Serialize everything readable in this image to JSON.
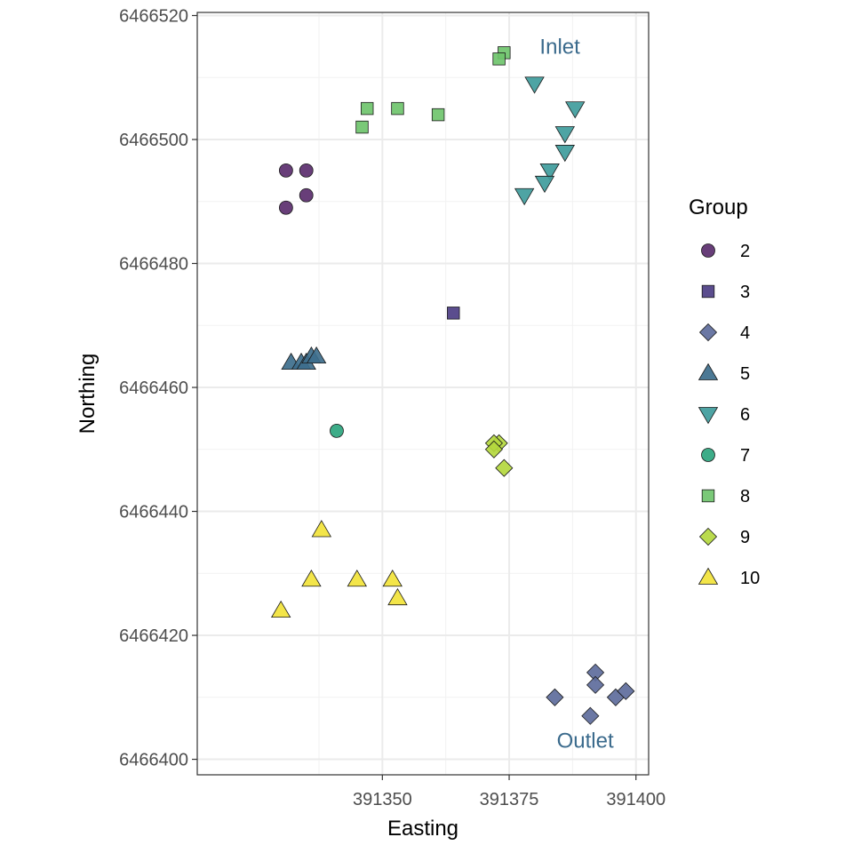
{
  "chart_data": {
    "type": "scatter",
    "xlabel": "Easting",
    "ylabel": "Northing",
    "xlim": [
      391313.5,
      391402.5
    ],
    "ylim": [
      6466397.5,
      6466520.5
    ],
    "x_ticks": [
      391350,
      391375,
      391400
    ],
    "x_tick_labels": [
      "391350",
      "391375",
      "391400"
    ],
    "y_ticks": [
      6466400,
      6466420,
      6466440,
      6466460,
      6466480,
      6466500,
      6466520
    ],
    "y_tick_labels": [
      "6466400",
      "6466420",
      "6466440",
      "6466460",
      "6466480",
      "6466500",
      "6466520"
    ],
    "grid": true,
    "legend": {
      "title": "Group",
      "position": "right"
    },
    "annotations": [
      {
        "text": "Inlet",
        "x": 391385,
        "y": 6466515
      },
      {
        "text": "Outlet",
        "x": 391390,
        "y": 6466403
      }
    ],
    "series": [
      {
        "name": "2",
        "shape": "circle",
        "color": "#5b2e6e",
        "points": [
          [
            391331,
            6466495
          ],
          [
            391335,
            6466495
          ],
          [
            391335,
            6466491
          ],
          [
            391331,
            6466489
          ]
        ]
      },
      {
        "name": "3",
        "shape": "square",
        "color": "#4d3e84",
        "points": [
          [
            391364,
            6466472
          ]
        ]
      },
      {
        "name": "4",
        "shape": "diamond",
        "color": "#5e6c9c",
        "points": [
          [
            391392,
            6466414
          ],
          [
            391392,
            6466412
          ],
          [
            391384,
            6466410
          ],
          [
            391396,
            6466410
          ],
          [
            391398,
            6466411
          ],
          [
            391391,
            6466407
          ]
        ]
      },
      {
        "name": "5",
        "shape": "triangle",
        "color": "#3d6e8c",
        "points": [
          [
            391332,
            6466464
          ],
          [
            391334,
            6466464
          ],
          [
            391335,
            6466464
          ],
          [
            391336,
            6466465
          ],
          [
            391337,
            6466465
          ]
        ]
      },
      {
        "name": "6",
        "shape": "triangle-down",
        "color": "#3f9c9c",
        "points": [
          [
            391380,
            6466509
          ],
          [
            391388,
            6466505
          ],
          [
            391386,
            6466501
          ],
          [
            391386,
            6466498
          ],
          [
            391383,
            6466495
          ],
          [
            391382,
            6466493
          ],
          [
            391378,
            6466491
          ]
        ]
      },
      {
        "name": "7",
        "shape": "circle",
        "color": "#2ca57e",
        "points": [
          [
            391341,
            6466453
          ]
        ]
      },
      {
        "name": "8",
        "shape": "square",
        "color": "#6fc46c",
        "points": [
          [
            391374,
            6466514
          ],
          [
            391373,
            6466513
          ],
          [
            391347,
            6466505
          ],
          [
            391353,
            6466505
          ],
          [
            391361,
            6466504
          ],
          [
            391346,
            6466502
          ]
        ]
      },
      {
        "name": "9",
        "shape": "diamond",
        "color": "#b4d83e",
        "points": [
          [
            391373,
            6466451
          ],
          [
            391372,
            6466451
          ],
          [
            391372,
            6466450
          ],
          [
            391374,
            6466447
          ]
        ]
      },
      {
        "name": "10",
        "shape": "triangle",
        "color": "#f2e33a",
        "points": [
          [
            391338,
            6466437
          ],
          [
            391336,
            6466429
          ],
          [
            391345,
            6466429
          ],
          [
            391352,
            6466429
          ],
          [
            391353,
            6466426
          ],
          [
            391330,
            6466424
          ]
        ]
      }
    ]
  }
}
